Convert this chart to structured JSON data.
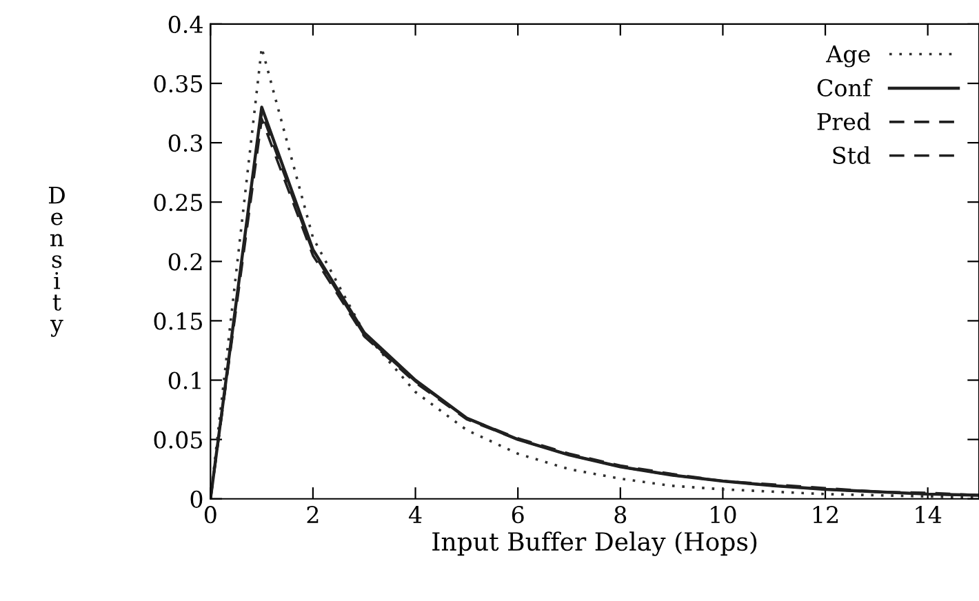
{
  "chart_data": {
    "type": "line",
    "xlabel": "Input Buffer Delay (Hops)",
    "ylabel": "Density",
    "x": [
      0,
      1,
      2,
      3,
      4,
      5,
      6,
      7,
      8,
      9,
      10,
      11,
      12,
      13,
      14,
      15
    ],
    "xlim": [
      0,
      15
    ],
    "ylim": [
      0,
      0.4
    ],
    "xticks": [
      0,
      2,
      4,
      6,
      8,
      10,
      12,
      14
    ],
    "yticks": [
      0,
      0.05,
      0.1,
      0.15,
      0.2,
      0.25,
      0.3,
      0.35,
      0.4
    ],
    "legend": "top right",
    "grid": false,
    "series": [
      {
        "name": "Age",
        "color": "#303030",
        "line_style": "dotted",
        "values": [
          0,
          0.38,
          0.22,
          0.14,
          0.09,
          0.058,
          0.038,
          0.025,
          0.017,
          0.011,
          0.008,
          0.006,
          0.004,
          0.003,
          0.002,
          0.001
        ]
      },
      {
        "name": "Conf",
        "color": "#202020",
        "line_style": "solid",
        "values": [
          0,
          0.33,
          0.21,
          0.14,
          0.1,
          0.068,
          0.05,
          0.037,
          0.027,
          0.02,
          0.015,
          0.011,
          0.008,
          0.006,
          0.004,
          0.003
        ]
      },
      {
        "name": "Pred",
        "color": "#202020",
        "line_style": "dashed",
        "values": [
          0,
          0.325,
          0.208,
          0.138,
          0.099,
          0.068,
          0.051,
          0.038,
          0.028,
          0.021,
          0.015,
          0.012,
          0.009,
          0.006,
          0.005,
          0.003
        ]
      },
      {
        "name": "Std",
        "color": "#202020",
        "line_style": "dashed",
        "values": [
          0,
          0.32,
          0.205,
          0.137,
          0.098,
          0.067,
          0.05,
          0.037,
          0.027,
          0.02,
          0.015,
          0.011,
          0.008,
          0.006,
          0.004,
          0.003
        ]
      }
    ]
  }
}
